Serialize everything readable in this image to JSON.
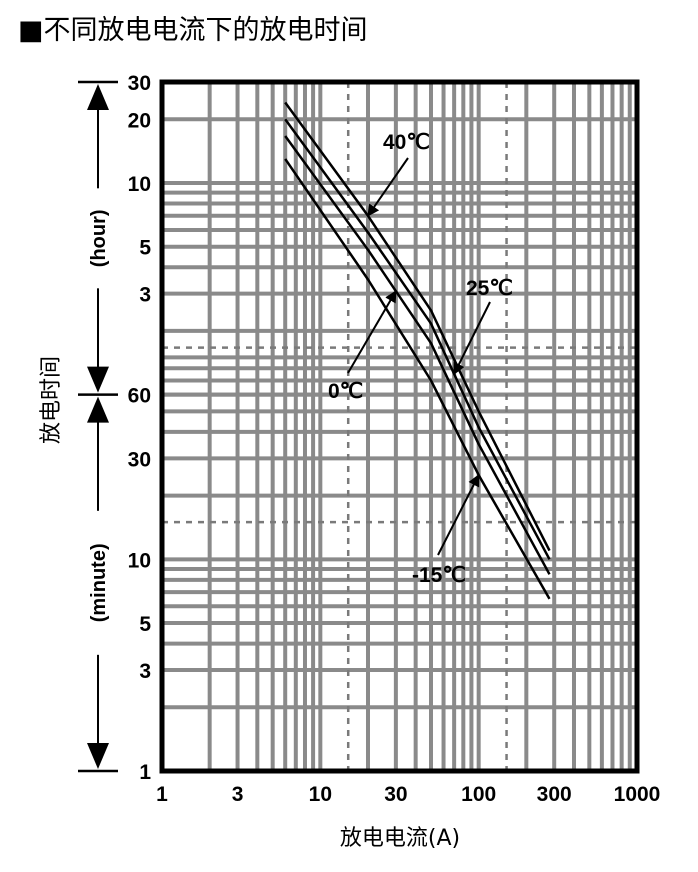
{
  "title": "■不同放电电流下的放电时间",
  "chart_data": {
    "type": "line",
    "x_scale": "log",
    "y_scale": "log",
    "xlabel": "放电电流(A)",
    "ylabel": "放电时间",
    "xlim": [
      1,
      1000
    ],
    "ylim_minutes": [
      1,
      1800
    ],
    "grid": true,
    "x_ticks": [
      "1",
      "3",
      "10",
      "30",
      "100",
      "300",
      "1000"
    ],
    "x_tick_values": [
      1,
      3,
      10,
      30,
      100,
      300,
      1000
    ],
    "y_ticks": [
      {
        "label": "30",
        "minutes": 1800
      },
      {
        "label": "20",
        "minutes": 1200
      },
      {
        "label": "10",
        "minutes": 600
      },
      {
        "label": "5",
        "minutes": 300
      },
      {
        "label": "3",
        "minutes": 180
      },
      {
        "label": "60",
        "minutes": 60
      },
      {
        "label": "30",
        "minutes": 30
      },
      {
        "label": "10",
        "minutes": 10
      },
      {
        "label": "5",
        "minutes": 5
      },
      {
        "label": "3",
        "minutes": 3
      },
      {
        "label": "1",
        "minutes": 1
      }
    ],
    "y_units": [
      {
        "label": "(hour)",
        "from_minutes": 60,
        "to_minutes": 1800
      },
      {
        "label": "(minute)",
        "from_minutes": 1,
        "to_minutes": 60
      }
    ],
    "reference_lines": {
      "x": [
        15,
        150
      ],
      "y_minutes": [
        100,
        15
      ]
    },
    "series": [
      {
        "name": "40℃",
        "x": [
          6,
          20,
          50,
          100,
          280
        ],
        "y_minutes": [
          1440,
          420,
          150,
          50,
          11
        ]
      },
      {
        "name": "25℃",
        "x": [
          6,
          20,
          50,
          100,
          280
        ],
        "y_minutes": [
          1200,
          350,
          130,
          42,
          10
        ]
      },
      {
        "name": "0℃",
        "x": [
          6,
          20,
          50,
          100,
          280
        ],
        "y_minutes": [
          1000,
          290,
          105,
          35,
          8.5
        ]
      },
      {
        "name": "-15℃",
        "x": [
          6,
          20,
          50,
          100,
          280
        ],
        "y_minutes": [
          780,
          210,
          70,
          25,
          6.5
        ]
      }
    ],
    "annotations": [
      {
        "text": "40℃",
        "series": "40℃",
        "at_x": 20
      },
      {
        "text": "25℃",
        "series": "25℃",
        "at_x": 70
      },
      {
        "text": "0℃",
        "series": "0℃",
        "at_x": 30
      },
      {
        "text": "-15℃",
        "series": "-15℃",
        "at_x": 100
      }
    ]
  }
}
